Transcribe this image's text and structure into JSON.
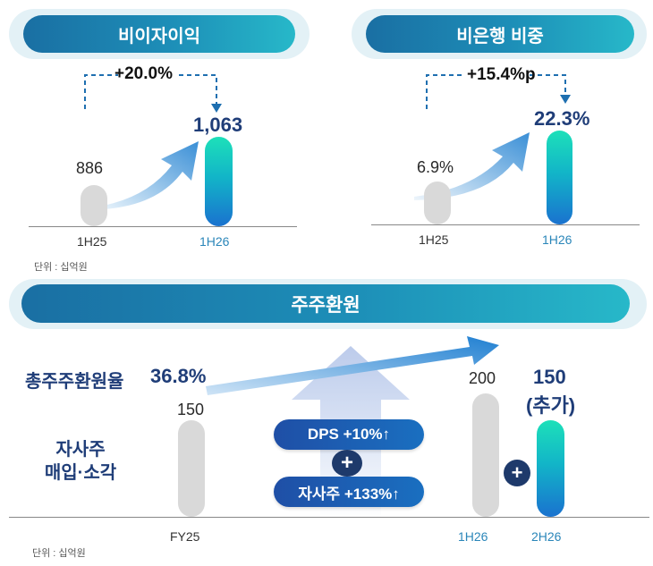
{
  "panels": {
    "nii": {
      "title": "비이자이익",
      "delta": "+20.0%",
      "unit": "단위 : 십억원"
    },
    "nonbank": {
      "title": "비은행 비중",
      "delta": "+15.4%p"
    },
    "shareholder": {
      "title": "주주환원",
      "payout_label": "총주주환원율",
      "payout_value": "36.8%",
      "buyback_label_1": "자사주",
      "buyback_label_2": "매입·소각",
      "dps_badge": "DPS +10%↑",
      "buyback_badge": "자사주 +133%↑",
      "plus": "+",
      "unit": "단위 : 십억원",
      "extra_label": "(추가)"
    }
  },
  "chart_data": [
    {
      "type": "bar",
      "title": "비이자이익",
      "categories": [
        "1H25",
        "1H26"
      ],
      "values": [
        886,
        1063
      ],
      "value_labels": [
        "886",
        "1,063"
      ],
      "change_label": "+20.0%",
      "unit": "단위 : 십억원"
    },
    {
      "type": "bar",
      "title": "비은행 비중",
      "categories": [
        "1H25",
        "1H26"
      ],
      "values": [
        6.9,
        22.3
      ],
      "value_labels": [
        "6.9%",
        "22.3%"
      ],
      "change_label": "+15.4%p"
    },
    {
      "type": "bar",
      "title": "주주환원",
      "categories": [
        "FY25",
        "1H26",
        "2H26"
      ],
      "values": [
        150,
        200,
        150
      ],
      "value_labels": [
        "150",
        "200",
        "150"
      ],
      "annotations": [
        "총주주환원율 36.8%",
        "DPS +10%↑",
        "자사주 +133%↑",
        "(추가)"
      ],
      "unit": "단위 : 십억원"
    }
  ]
}
